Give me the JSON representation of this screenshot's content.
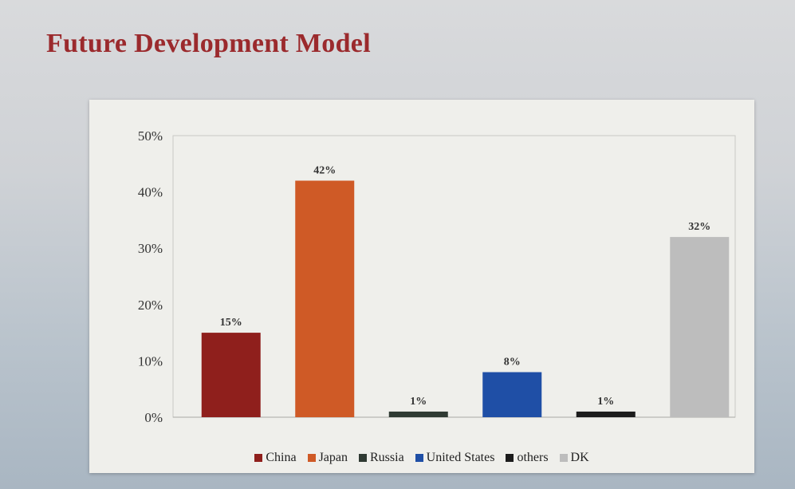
{
  "page": {
    "title": "Future Development Model"
  },
  "chart_data": {
    "type": "bar",
    "categories": [
      "China",
      "Japan",
      "Russia",
      "United States",
      "others",
      "DK"
    ],
    "values": [
      15,
      42,
      1,
      8,
      1,
      32
    ],
    "data_labels": [
      "15%",
      "42%",
      "1%",
      "8%",
      "1%",
      "32%"
    ],
    "colors": [
      "#8f1f1c",
      "#cf5a26",
      "#2f3a33",
      "#1f4fa6",
      "#1c1c1c",
      "#bdbdbd"
    ],
    "ylim": [
      0,
      50
    ],
    "yticks": [
      0,
      10,
      20,
      30,
      40,
      50
    ],
    "ytick_labels": [
      "0%",
      "10%",
      "20%",
      "30%",
      "40%",
      "50%"
    ],
    "grid": false,
    "legend_position": "bottom"
  }
}
